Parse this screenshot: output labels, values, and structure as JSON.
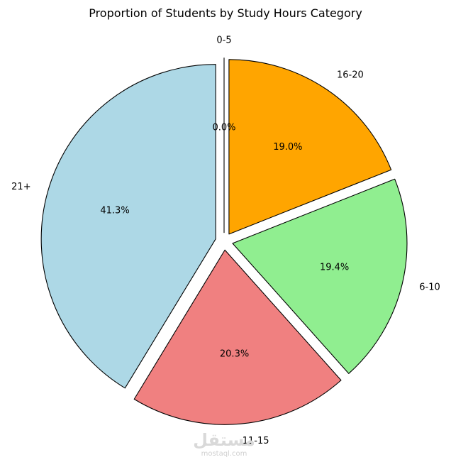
{
  "chart_data": {
    "type": "pie",
    "title": "Proportion of Students by Study Hours Category",
    "slices": [
      {
        "label": "0-5",
        "value": 0.0,
        "pct_label": "0.0%",
        "color": "#add8e6"
      },
      {
        "label": "16-20",
        "value": 19.0,
        "pct_label": "19.0%",
        "color": "#ffa500"
      },
      {
        "label": "6-10",
        "value": 19.4,
        "pct_label": "19.4%",
        "color": "#90ee90"
      },
      {
        "label": "11-15",
        "value": 20.3,
        "pct_label": "20.3%",
        "color": "#f08080"
      },
      {
        "label": "21+",
        "value": 41.3,
        "pct_label": "41.3%",
        "color": "#add8e6"
      }
    ],
    "start_angle_deg": 90,
    "direction": "clockwise",
    "explode": 0.05,
    "edge_color": "#000000"
  },
  "watermark": {
    "arabic": "مستقل",
    "latin": "mostaql.com"
  }
}
